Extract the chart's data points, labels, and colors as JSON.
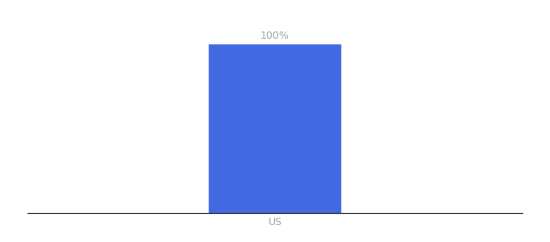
{
  "categories": [
    "US"
  ],
  "values": [
    100
  ],
  "bar_color": "#4169e1",
  "label_color": "#a0a0a0",
  "xlabel_color": "#a0a0a0",
  "value_labels": [
    "100%"
  ],
  "ylim": [
    0,
    115
  ],
  "xlim": [
    -1.5,
    1.5
  ],
  "bar_width": 0.8,
  "background_color": "#ffffff",
  "label_fontsize": 9,
  "xlabel_fontsize": 9,
  "figsize": [
    6.8,
    3.0
  ],
  "dpi": 100
}
